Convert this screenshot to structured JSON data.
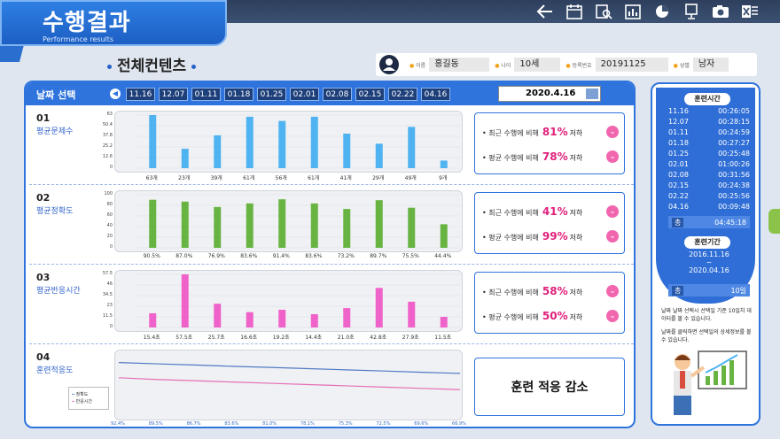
{
  "header": {
    "title": "수행결과",
    "subtitle": "Performance results"
  },
  "toolbar": {
    "icons": [
      "back-arrow-icon",
      "calendar-icon",
      "search-report-icon",
      "bar-chart-icon",
      "pie-chart-icon",
      "monitor-icon",
      "camera-icon",
      "excel-icon"
    ]
  },
  "page": {
    "heading": "전체컨텐츠"
  },
  "user": {
    "name_label": "이름",
    "name": "홍길동",
    "age_label": "나이",
    "age": "10세",
    "reg_label": "등록번호",
    "reg": "20191125",
    "sex_label": "성별",
    "sex": "남자"
  },
  "dates": {
    "label": "날짜 선택",
    "items": [
      "11.16",
      "12.07",
      "01.11",
      "01.18",
      "01.25",
      "02.01",
      "02.08",
      "02.15",
      "02.22",
      "04.16"
    ],
    "selected": "2020.4.16"
  },
  "rows": [
    {
      "num": "01",
      "title": "평균문제수",
      "ticks": [
        "63",
        "50.4",
        "37.8",
        "25.2",
        "12.6",
        "0"
      ],
      "labels": [
        "63개",
        "23개",
        "39개",
        "61개",
        "56개",
        "61개",
        "41개",
        "29개",
        "49개",
        "9개"
      ],
      "cmp1": {
        "text": "최근 수행에 비해",
        "pct": "81%",
        "dir": "저하"
      },
      "cmp2": {
        "text": "평균 수행에 비해",
        "pct": "78%",
        "dir": "저하"
      }
    },
    {
      "num": "02",
      "title": "평균정확도",
      "ticks": [
        "100",
        "80",
        "60",
        "40",
        "20",
        "0"
      ],
      "labels": [
        "90.5%",
        "87.0%",
        "76.9%",
        "83.6%",
        "91.4%",
        "83.6%",
        "73.2%",
        "89.7%",
        "75.5%",
        "44.4%"
      ],
      "cmp1": {
        "text": "최근 수행에 비해",
        "pct": "41%",
        "dir": "저하"
      },
      "cmp2": {
        "text": "평균 수행에 비해",
        "pct": "99%",
        "dir": "저하"
      }
    },
    {
      "num": "03",
      "title": "평균반응시간",
      "ticks": [
        "57.5",
        "46",
        "34.5",
        "23",
        "11.5",
        "0"
      ],
      "labels": [
        "15.4초",
        "57.5초",
        "25.7초",
        "16.6초",
        "19.2초",
        "14.4초",
        "21.0초",
        "42.8초",
        "27.9초",
        "11.5초"
      ],
      "cmp1": {
        "text": "최근 수행에 비해",
        "pct": "58%",
        "dir": "저하"
      },
      "cmp2": {
        "text": "평균 수행에 비해",
        "pct": "50%",
        "dir": "저하"
      }
    },
    {
      "num": "04",
      "title": "훈련적응도",
      "legend": [
        "정확도",
        "반응시간"
      ],
      "labels_top": [
        "92.4%",
        "89.5%",
        "86.7%",
        "83.6%",
        "81.0%",
        "78.1%",
        "75.3%",
        "72.5%",
        "69.6%",
        "66.9%"
      ],
      "labels_bot": [
        "39.5초",
        "38.3초",
        "37.4초",
        "36.5초",
        "35.6초",
        "34.7초",
        "33.8초",
        "32.9초",
        "32.0초",
        "31.1초"
      ],
      "summary": "훈련 적응 감소"
    }
  ],
  "chart_data": [
    {
      "type": "bar",
      "title": "평균문제수",
      "categories": [
        "11.16",
        "12.07",
        "01.11",
        "01.18",
        "01.25",
        "02.01",
        "02.08",
        "02.15",
        "02.22",
        "04.16"
      ],
      "values": [
        63,
        23,
        39,
        61,
        56,
        61,
        41,
        29,
        49,
        9
      ],
      "ylim": [
        0,
        63
      ],
      "color": "#4fb3f2"
    },
    {
      "type": "bar",
      "title": "평균정확도",
      "categories": [
        "11.16",
        "12.07",
        "01.11",
        "01.18",
        "01.25",
        "02.01",
        "02.08",
        "02.15",
        "02.22",
        "04.16"
      ],
      "values": [
        90.5,
        87.0,
        76.9,
        83.6,
        91.4,
        83.6,
        73.2,
        89.7,
        75.5,
        44.4
      ],
      "ylim": [
        0,
        100
      ],
      "color": "#67b443"
    },
    {
      "type": "bar",
      "title": "평균반응시간",
      "categories": [
        "11.16",
        "12.07",
        "01.11",
        "01.18",
        "01.25",
        "02.01",
        "02.08",
        "02.15",
        "02.22",
        "04.16"
      ],
      "values": [
        15.4,
        57.5,
        25.7,
        16.6,
        19.2,
        14.4,
        21.0,
        42.8,
        27.9,
        11.5
      ],
      "ylim": [
        0,
        57.5
      ],
      "color": "#ef62c9"
    },
    {
      "type": "line",
      "title": "훈련적응도",
      "series": [
        {
          "name": "정확도",
          "values": [
            92.4,
            89.5,
            86.7,
            83.6,
            81.0,
            78.1,
            75.3,
            72.5,
            69.6,
            66.9
          ],
          "color": "#4f79c4"
        },
        {
          "name": "반응시간",
          "values": [
            39.5,
            38.3,
            37.4,
            36.5,
            35.6,
            34.7,
            33.8,
            32.9,
            32.0,
            31.1
          ],
          "color": "#e46fb6"
        }
      ]
    }
  ],
  "side": {
    "log_title": "훈련시간",
    "log": [
      [
        "11.16",
        "00:26:05"
      ],
      [
        "12.07",
        "00:28:15"
      ],
      [
        "01.11",
        "00:24:59"
      ],
      [
        "01.18",
        "00:27:27"
      ],
      [
        "01.25",
        "00:25:48"
      ],
      [
        "02.01",
        "01:00:26"
      ],
      [
        "02.08",
        "00:31:56"
      ],
      [
        "02.15",
        "00:24:38"
      ],
      [
        "02.22",
        "00:25:56"
      ],
      [
        "04.16",
        "00:09:48"
      ]
    ],
    "total_key": "총",
    "total_val": "04:45:18",
    "period_title": "훈련기간",
    "period_start": "2016.11.16",
    "period_sep": "~",
    "period_end": "2020.04.16",
    "days_key": "총",
    "days_val": "10일",
    "note1": "날짜 날짜 선택시 선택일 기준 10일치 데이터를 볼 수 있습니다.",
    "note2": "날짜를 클릭하면 선택일의 상세정보를 볼 수 있습니다."
  }
}
